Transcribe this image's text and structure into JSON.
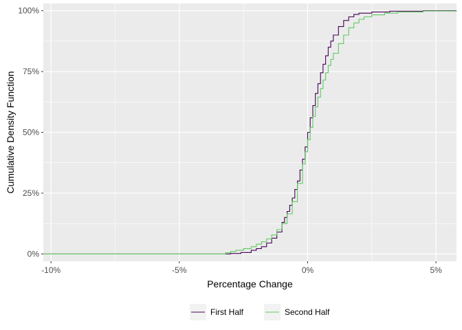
{
  "chart_data": {
    "type": "line",
    "title": "",
    "xlabel": "Percentage Change",
    "ylabel": "Cumulative Density Function",
    "xlim": [
      -10.3,
      5.8
    ],
    "ylim": [
      -0.03,
      1.03
    ],
    "x_ticks": [
      {
        "value": -10,
        "label": "-10%"
      },
      {
        "value": -5,
        "label": "-5%"
      },
      {
        "value": 0,
        "label": "0%"
      },
      {
        "value": 5,
        "label": "5%"
      }
    ],
    "y_ticks": [
      {
        "value": 0,
        "label": "0%"
      },
      {
        "value": 0.25,
        "label": "25%"
      },
      {
        "value": 0.5,
        "label": "50%"
      },
      {
        "value": 0.75,
        "label": "75%"
      },
      {
        "value": 1,
        "label": "100%"
      }
    ],
    "grid": true,
    "legend_position": "bottom",
    "background": "#ebebeb",
    "grid_color": "#ffffff",
    "series": [
      {
        "name": "First Half",
        "color": "#440154",
        "points": [
          [
            -10.3,
            0
          ],
          [
            -9.6,
            0
          ],
          [
            -3.4,
            0
          ],
          [
            -3.0,
            0.002
          ],
          [
            -2.6,
            0.006
          ],
          [
            -2.2,
            0.015
          ],
          [
            -2.0,
            0.022
          ],
          [
            -1.8,
            0.03
          ],
          [
            -1.6,
            0.045
          ],
          [
            -1.4,
            0.065
          ],
          [
            -1.2,
            0.09
          ],
          [
            -1.0,
            0.13
          ],
          [
            -0.9,
            0.15
          ],
          [
            -0.8,
            0.175
          ],
          [
            -0.7,
            0.2
          ],
          [
            -0.6,
            0.23
          ],
          [
            -0.5,
            0.265
          ],
          [
            -0.4,
            0.3
          ],
          [
            -0.3,
            0.345
          ],
          [
            -0.2,
            0.39
          ],
          [
            -0.1,
            0.44
          ],
          [
            0,
            0.5
          ],
          [
            0.1,
            0.56
          ],
          [
            0.2,
            0.61
          ],
          [
            0.3,
            0.66
          ],
          [
            0.4,
            0.7
          ],
          [
            0.5,
            0.745
          ],
          [
            0.6,
            0.78
          ],
          [
            0.7,
            0.815
          ],
          [
            0.8,
            0.85
          ],
          [
            0.9,
            0.875
          ],
          [
            1.0,
            0.9
          ],
          [
            1.2,
            0.935
          ],
          [
            1.4,
            0.96
          ],
          [
            1.6,
            0.975
          ],
          [
            1.8,
            0.985
          ],
          [
            2.0,
            0.99
          ],
          [
            2.5,
            0.995
          ],
          [
            3.2,
            0.998
          ],
          [
            4.5,
            1.0
          ],
          [
            5.8,
            1.0
          ]
        ]
      },
      {
        "name": "Second Half",
        "color": "#5ec962",
        "points": [
          [
            -10.3,
            0
          ],
          [
            -3.5,
            0
          ],
          [
            -3.2,
            0.005
          ],
          [
            -3.0,
            0.01
          ],
          [
            -2.8,
            0.015
          ],
          [
            -2.5,
            0.022
          ],
          [
            -2.2,
            0.03
          ],
          [
            -2.0,
            0.04
          ],
          [
            -1.8,
            0.05
          ],
          [
            -1.6,
            0.062
          ],
          [
            -1.4,
            0.078
          ],
          [
            -1.2,
            0.1
          ],
          [
            -1.0,
            0.125
          ],
          [
            -0.8,
            0.165
          ],
          [
            -0.6,
            0.215
          ],
          [
            -0.4,
            0.29
          ],
          [
            -0.2,
            0.37
          ],
          [
            -0.1,
            0.42
          ],
          [
            0,
            0.47
          ],
          [
            0.1,
            0.52
          ],
          [
            0.2,
            0.565
          ],
          [
            0.3,
            0.605
          ],
          [
            0.4,
            0.645
          ],
          [
            0.5,
            0.68
          ],
          [
            0.6,
            0.715
          ],
          [
            0.7,
            0.745
          ],
          [
            0.8,
            0.775
          ],
          [
            0.9,
            0.8
          ],
          [
            1.0,
            0.825
          ],
          [
            1.2,
            0.865
          ],
          [
            1.4,
            0.9
          ],
          [
            1.6,
            0.93
          ],
          [
            1.8,
            0.95
          ],
          [
            2.0,
            0.965
          ],
          [
            2.2,
            0.975
          ],
          [
            2.5,
            0.983
          ],
          [
            3.0,
            0.99
          ],
          [
            3.5,
            0.995
          ],
          [
            4.5,
            0.999
          ],
          [
            5.8,
            1.0
          ]
        ]
      }
    ]
  }
}
